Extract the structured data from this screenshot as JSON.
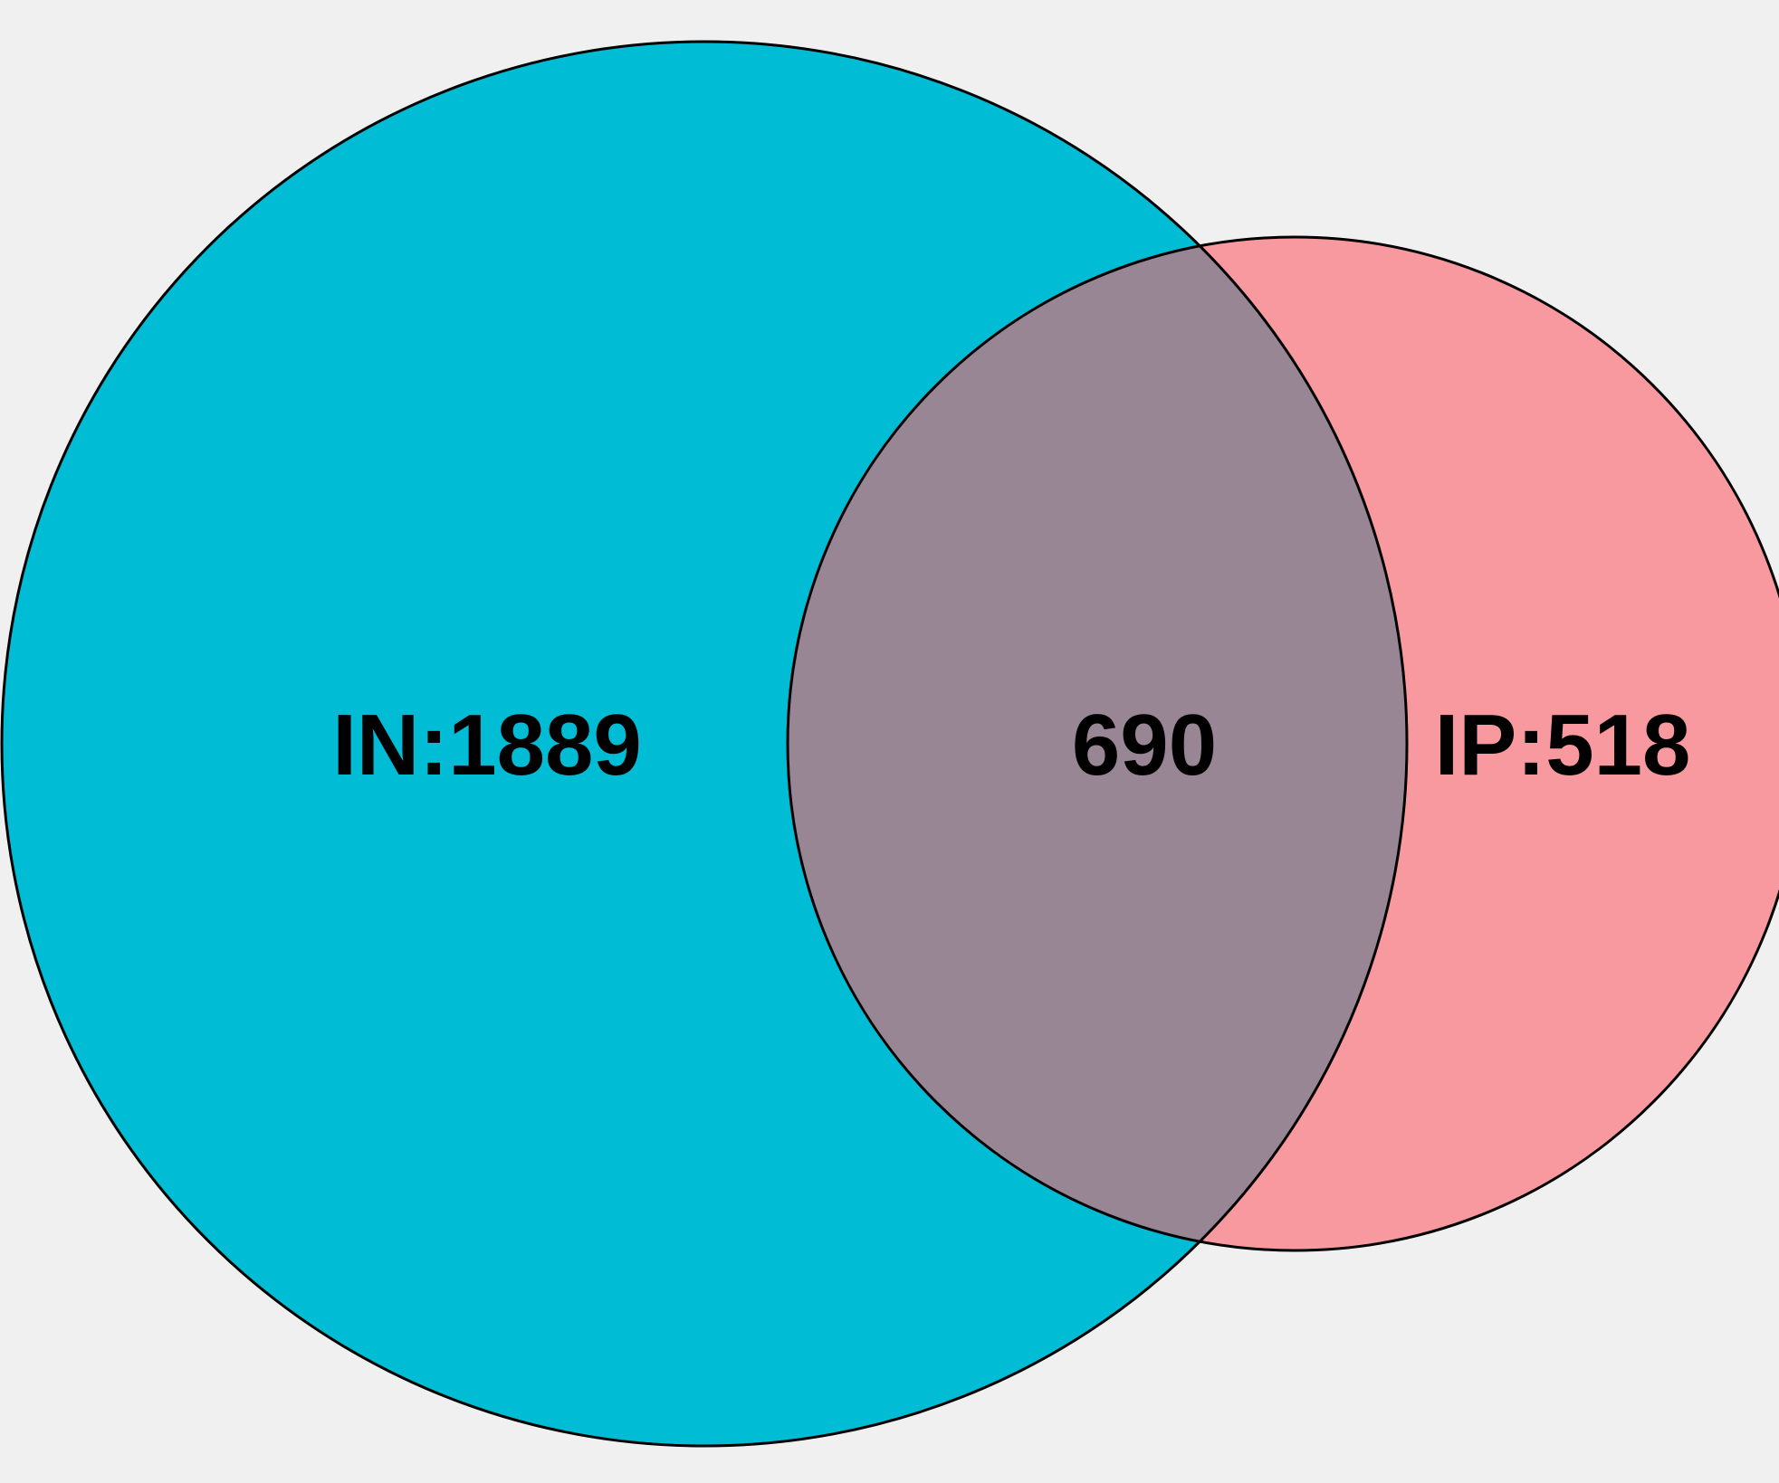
{
  "venn": {
    "sets": [
      {
        "key": "IN",
        "label": "IN:1889",
        "color": "#00bcd4"
      },
      {
        "key": "IP",
        "label": "IP:518",
        "color": "#f8999f"
      }
    ],
    "overlap": {
      "label": "690",
      "color": "#998694"
    }
  }
}
